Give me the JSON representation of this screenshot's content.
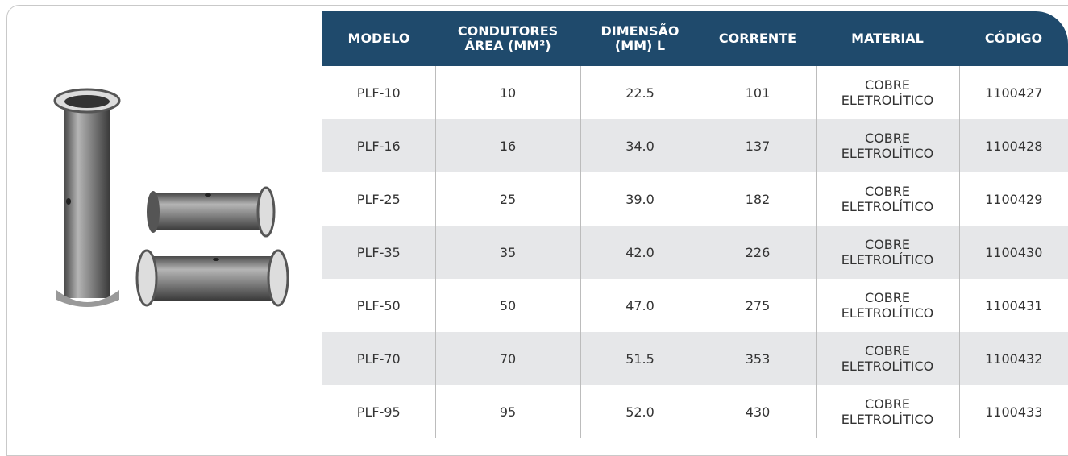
{
  "table": {
    "headers": [
      "MODELO",
      "CONDUTORES ÁREA (MM²)",
      "DIMENSÃO (MM) L",
      "CORRENTE",
      "MATERIAL",
      "CÓDIGO"
    ],
    "rows": [
      [
        "PLF-10",
        "10",
        "22.5",
        "101",
        "COBRE ELETROLÍTICO",
        "1100427"
      ],
      [
        "PLF-16",
        "16",
        "34.0",
        "137",
        "COBRE ELETROLÍTICO",
        "1100428"
      ],
      [
        "PLF-25",
        "25",
        "39.0",
        "182",
        "COBRE ELETROLÍTICO",
        "1100429"
      ],
      [
        "PLF-35",
        "35",
        "42.0",
        "226",
        "COBRE ELETROLÍTICO",
        "1100430"
      ],
      [
        "PLF-50",
        "50",
        "47.0",
        "275",
        "COBRE ELETROLÍTICO",
        "1100431"
      ],
      [
        "PLF-70",
        "70",
        "51.5",
        "353",
        "COBRE ELETROLÍTICO",
        "1100432"
      ],
      [
        "PLF-95",
        "95",
        "52.0",
        "430",
        "COBRE ELETROLÍTICO",
        "1100433"
      ]
    ]
  }
}
